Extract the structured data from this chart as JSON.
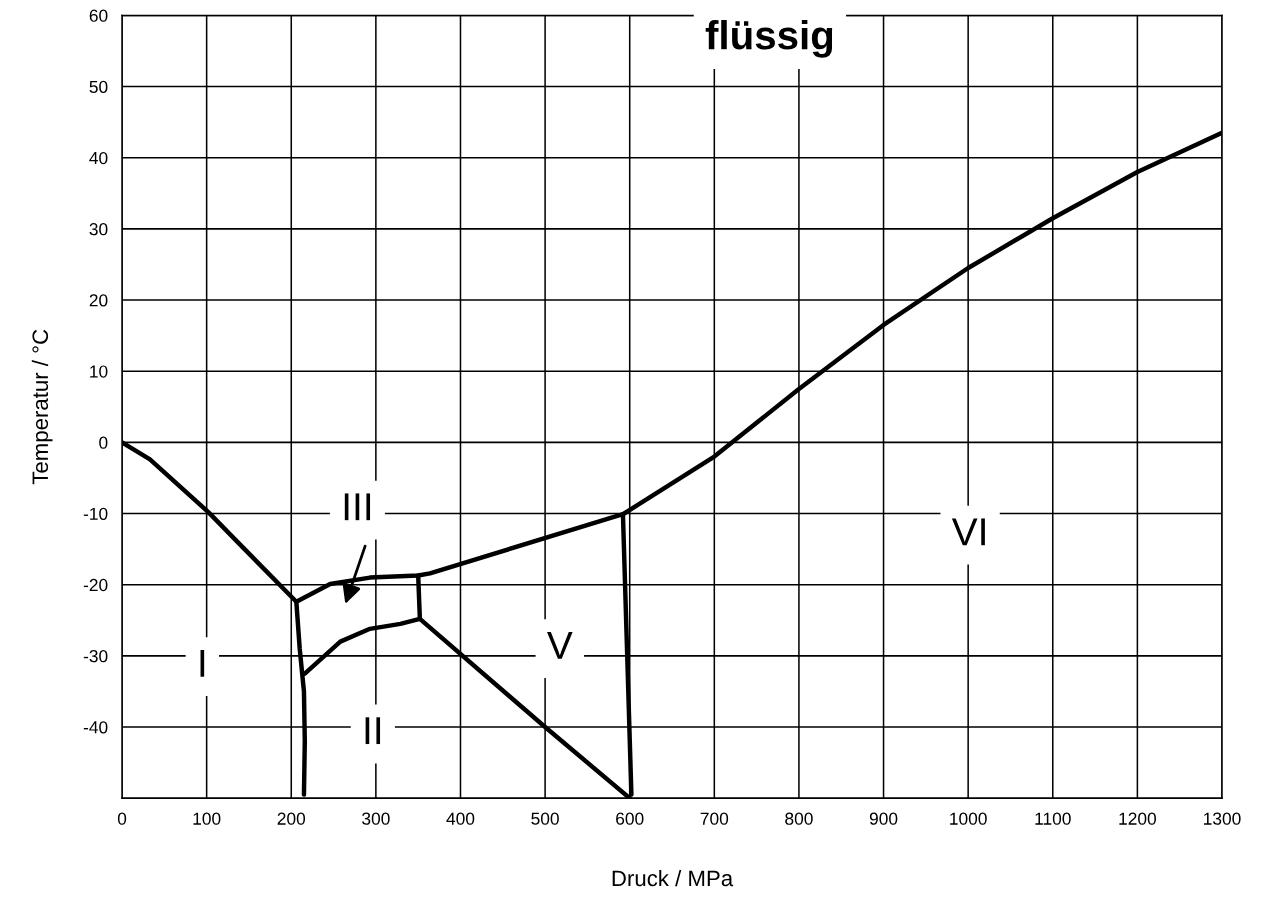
{
  "chart_data": {
    "type": "line",
    "xlabel": "Druck / MPa",
    "ylabel": "Temperatur / °C",
    "xlim": [
      0,
      1300
    ],
    "xticks": [
      0,
      100,
      200,
      300,
      400,
      500,
      600,
      700,
      800,
      900,
      1000,
      1100,
      1200,
      1300
    ],
    "ylim": [
      -50,
      60
    ],
    "yticks": [
      {
        "value": -50,
        "label": null
      },
      -40,
      -30,
      -20,
      -10,
      0,
      10,
      20,
      30,
      40,
      50,
      60
    ],
    "grid": true,
    "marker": "none",
    "line_style": "solid",
    "series": [
      {
        "color": "#000000",
        "x": [
          0,
          33,
          102,
          139,
          206,
          246,
          293,
          350,
          364,
          592,
          700,
          800,
          900,
          1000,
          1100,
          1200,
          1300
        ],
        "values": [
          0,
          -2.4,
          -9.8,
          -14.3,
          -22.4,
          -19.9,
          -19.0,
          -18.7,
          -18.4,
          -10.1,
          -2,
          7.5,
          16.5,
          24.5,
          31.5,
          38,
          43.5
        ]
      },
      {
        "color": "#000000",
        "x": [
          206,
          210,
          215,
          216,
          215
        ],
        "values": [
          -22.4,
          -29,
          -35,
          -42,
          -49.5
        ]
      },
      {
        "color": "#000000",
        "x": [
          592,
          602
        ],
        "values": [
          -10.1,
          -49.5
        ]
      },
      {
        "color": "#000000",
        "x": [
          350,
          352
        ],
        "values": [
          -18.7,
          -24.8
        ]
      },
      {
        "color": "#000000",
        "x": [
          216,
          258,
          293,
          329,
          352
        ],
        "values": [
          -32.5,
          -28,
          -26.2,
          -25.5,
          -24.8
        ]
      },
      {
        "color": "#000000",
        "x": [
          352,
          500,
          600
        ],
        "values": [
          -24.8,
          -40,
          -50
        ]
      }
    ],
    "annotations": [
      "flüssig",
      "I",
      "III",
      "II",
      "V",
      "VI"
    ]
  }
}
